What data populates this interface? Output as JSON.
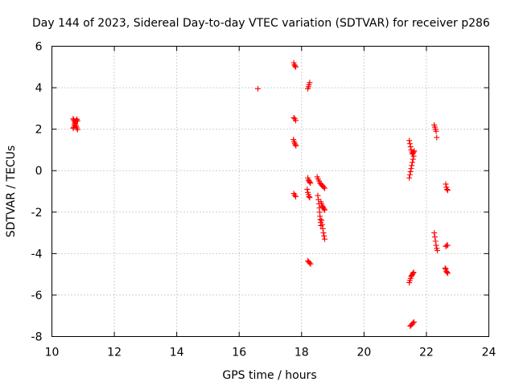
{
  "chart_data": {
    "type": "scatter",
    "title": "Day 144 of 2023, Sidereal Day-to-day VTEC variation (SDTVAR) for receiver p286",
    "xlabel": "GPS time / hours",
    "ylabel": "SDTVAR / TECUs",
    "xlim": [
      10,
      24
    ],
    "ylim": [
      -8,
      6
    ],
    "xticks": [
      "10",
      "12",
      "14",
      "16",
      "18",
      "20",
      "22",
      "24"
    ],
    "yticks": [
      "-8",
      "-6",
      "-4",
      "-2",
      "0",
      "2",
      "4",
      "6"
    ],
    "grid": true,
    "marker": "+",
    "color": "#ff0000",
    "series": [
      {
        "name": "SDTVAR",
        "points": [
          [
            10.68,
            2.5
          ],
          [
            10.7,
            2.45
          ],
          [
            10.72,
            2.38
          ],
          [
            10.74,
            2.3
          ],
          [
            10.76,
            2.22
          ],
          [
            10.78,
            2.14
          ],
          [
            10.8,
            2.06
          ],
          [
            10.82,
            1.98
          ],
          [
            10.68,
            2.05
          ],
          [
            10.7,
            2.1
          ],
          [
            10.72,
            2.2
          ],
          [
            10.74,
            2.28
          ],
          [
            10.76,
            2.35
          ],
          [
            10.78,
            2.42
          ],
          [
            10.8,
            2.48
          ],
          [
            10.82,
            2.4
          ],
          [
            16.6,
            3.95
          ],
          [
            17.75,
            5.2
          ],
          [
            17.77,
            5.1
          ],
          [
            17.79,
            5.05
          ],
          [
            17.81,
            5.0
          ],
          [
            17.75,
            2.55
          ],
          [
            17.78,
            2.5
          ],
          [
            17.81,
            2.42
          ],
          [
            17.74,
            1.5
          ],
          [
            17.76,
            1.4
          ],
          [
            17.78,
            1.32
          ],
          [
            17.8,
            1.25
          ],
          [
            17.82,
            1.2
          ],
          [
            17.75,
            -1.1
          ],
          [
            17.78,
            -1.18
          ],
          [
            17.81,
            -1.25
          ],
          [
            18.2,
            3.95
          ],
          [
            18.22,
            4.05
          ],
          [
            18.24,
            4.15
          ],
          [
            18.26,
            4.25
          ],
          [
            18.2,
            -0.35
          ],
          [
            18.22,
            -0.45
          ],
          [
            18.24,
            -0.5
          ],
          [
            18.26,
            -0.55
          ],
          [
            18.28,
            -0.6
          ],
          [
            18.18,
            -0.9
          ],
          [
            18.2,
            -1.05
          ],
          [
            18.22,
            -1.15
          ],
          [
            18.24,
            -1.25
          ],
          [
            18.26,
            -1.3
          ],
          [
            18.2,
            -4.35
          ],
          [
            18.23,
            -4.4
          ],
          [
            18.26,
            -4.45
          ],
          [
            18.29,
            -4.5
          ],
          [
            18.5,
            -0.3
          ],
          [
            18.53,
            -0.4
          ],
          [
            18.56,
            -0.5
          ],
          [
            18.59,
            -0.6
          ],
          [
            18.62,
            -0.65
          ],
          [
            18.65,
            -0.7
          ],
          [
            18.68,
            -0.75
          ],
          [
            18.71,
            -0.8
          ],
          [
            18.74,
            -0.85
          ],
          [
            18.52,
            -1.2
          ],
          [
            18.54,
            -1.4
          ],
          [
            18.56,
            -1.6
          ],
          [
            18.57,
            -1.8
          ],
          [
            18.58,
            -2.0
          ],
          [
            18.59,
            -2.2
          ],
          [
            18.6,
            -2.35
          ],
          [
            18.61,
            -2.5
          ],
          [
            18.62,
            -2.65
          ],
          [
            18.62,
            -1.5
          ],
          [
            18.64,
            -1.6
          ],
          [
            18.66,
            -1.7
          ],
          [
            18.68,
            -1.75
          ],
          [
            18.7,
            -1.8
          ],
          [
            18.72,
            -1.85
          ],
          [
            18.74,
            -1.9
          ],
          [
            18.64,
            -2.4
          ],
          [
            18.66,
            -2.6
          ],
          [
            18.68,
            -2.8
          ],
          [
            18.7,
            -3.0
          ],
          [
            18.72,
            -3.15
          ],
          [
            18.74,
            -3.3
          ],
          [
            21.45,
            1.45
          ],
          [
            21.47,
            1.3
          ],
          [
            21.49,
            1.15
          ],
          [
            21.51,
            1.0
          ],
          [
            21.53,
            0.9
          ],
          [
            21.55,
            0.8
          ],
          [
            21.57,
            0.85
          ],
          [
            21.59,
            0.9
          ],
          [
            21.61,
            0.95
          ],
          [
            21.45,
            -0.35
          ],
          [
            21.47,
            -0.2
          ],
          [
            21.49,
            -0.05
          ],
          [
            21.51,
            0.1
          ],
          [
            21.53,
            0.25
          ],
          [
            21.55,
            0.4
          ],
          [
            21.57,
            0.55
          ],
          [
            21.59,
            0.7
          ],
          [
            21.45,
            -5.4
          ],
          [
            21.47,
            -5.3
          ],
          [
            21.49,
            -5.2
          ],
          [
            21.51,
            -5.1
          ],
          [
            21.53,
            -5.05
          ],
          [
            21.55,
            -5.0
          ],
          [
            21.57,
            -4.95
          ],
          [
            21.59,
            -4.9
          ],
          [
            21.48,
            -7.5
          ],
          [
            21.51,
            -7.45
          ],
          [
            21.54,
            -7.4
          ],
          [
            21.57,
            -7.35
          ],
          [
            21.6,
            -7.3
          ],
          [
            22.25,
            2.2
          ],
          [
            22.27,
            2.1
          ],
          [
            22.29,
            2.0
          ],
          [
            22.31,
            1.9
          ],
          [
            22.33,
            1.6
          ],
          [
            22.25,
            -3.0
          ],
          [
            22.27,
            -3.2
          ],
          [
            22.29,
            -3.4
          ],
          [
            22.31,
            -3.6
          ],
          [
            22.33,
            -3.75
          ],
          [
            22.35,
            -3.85
          ],
          [
            22.62,
            -0.65
          ],
          [
            22.64,
            -0.8
          ],
          [
            22.66,
            -0.9
          ],
          [
            22.68,
            -0.95
          ],
          [
            22.62,
            -3.65
          ],
          [
            22.65,
            -3.6
          ],
          [
            22.68,
            -3.6
          ],
          [
            22.6,
            -4.7
          ],
          [
            22.62,
            -4.75
          ],
          [
            22.64,
            -4.85
          ],
          [
            22.66,
            -4.9
          ],
          [
            22.68,
            -4.95
          ]
        ]
      }
    ]
  }
}
